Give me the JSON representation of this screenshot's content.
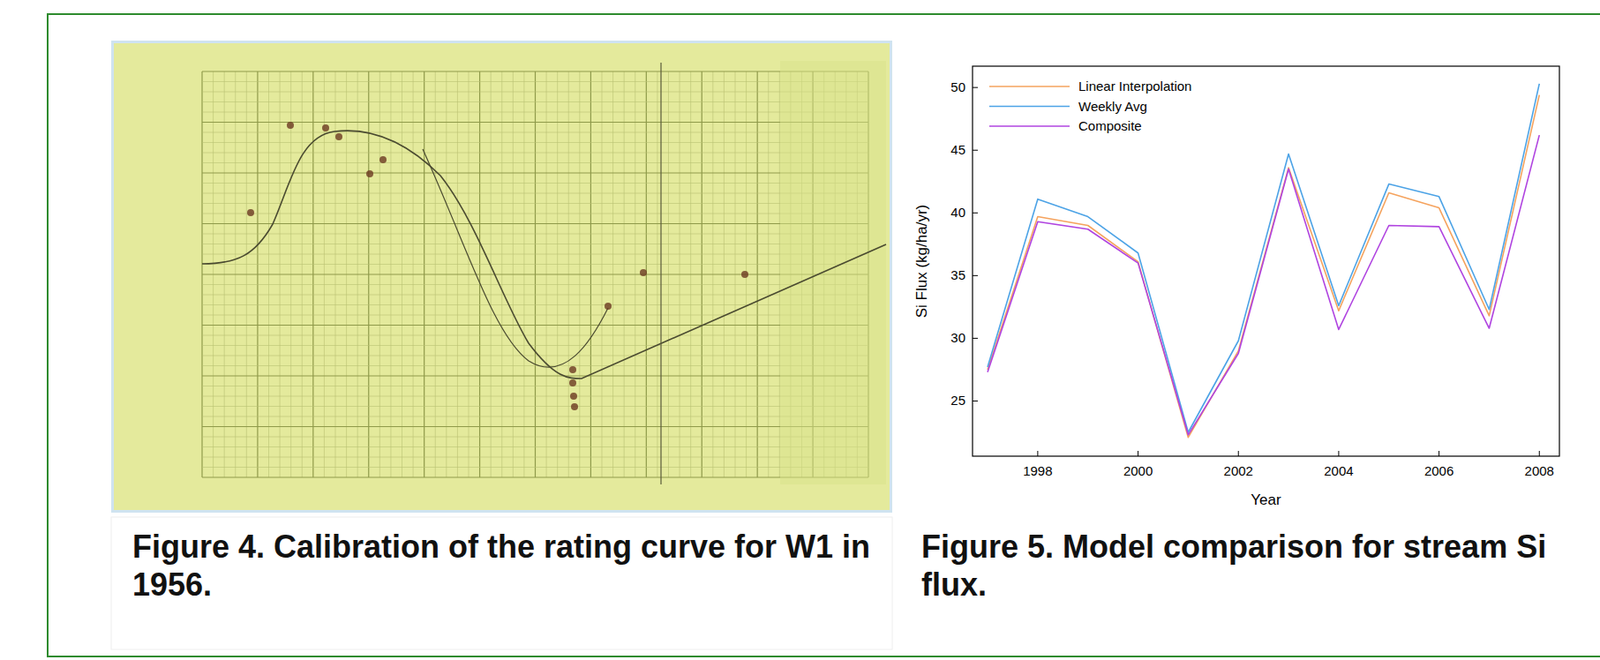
{
  "chart_data": {
    "type": "line",
    "x_label": "Year",
    "y_label": "Si Flux (kg/ha/yr)",
    "x": [
      1997,
      1998,
      1999,
      2000,
      2001,
      2002,
      2003,
      2004,
      2005,
      2006,
      2007,
      2008
    ],
    "series": [
      {
        "name": "Linear Interpolation",
        "color": "#f5a35e",
        "values": [
          27.5,
          39.7,
          39.0,
          36.1,
          22.1,
          29.0,
          43.6,
          32.2,
          41.6,
          40.4,
          31.8,
          49.4
        ]
      },
      {
        "name": "Weekly Avg",
        "color": "#4ca3e6",
        "values": [
          27.7,
          41.1,
          39.7,
          36.8,
          22.5,
          29.8,
          44.7,
          32.6,
          42.3,
          41.3,
          32.3,
          50.3
        ]
      },
      {
        "name": "Composite",
        "color": "#b044e0",
        "values": [
          27.3,
          39.3,
          38.7,
          36.0,
          22.3,
          28.8,
          43.5,
          30.7,
          39.0,
          38.9,
          30.8,
          46.2
        ]
      }
    ],
    "xlim": [
      1996.7,
      2008.4
    ],
    "ylim": [
      20.6,
      51.7
    ],
    "xticks": [
      1998,
      2000,
      2002,
      2004,
      2006,
      2008
    ],
    "yticks": [
      25,
      30,
      35,
      40,
      45,
      50
    ],
    "legend": "upper left",
    "grid": false
  },
  "figures": [
    {
      "caption": "Figure 4. Calibration of the rating curve for W1 in 1956."
    },
    {
      "caption": "Figure 5. Model comparison for stream Si flux."
    }
  ]
}
